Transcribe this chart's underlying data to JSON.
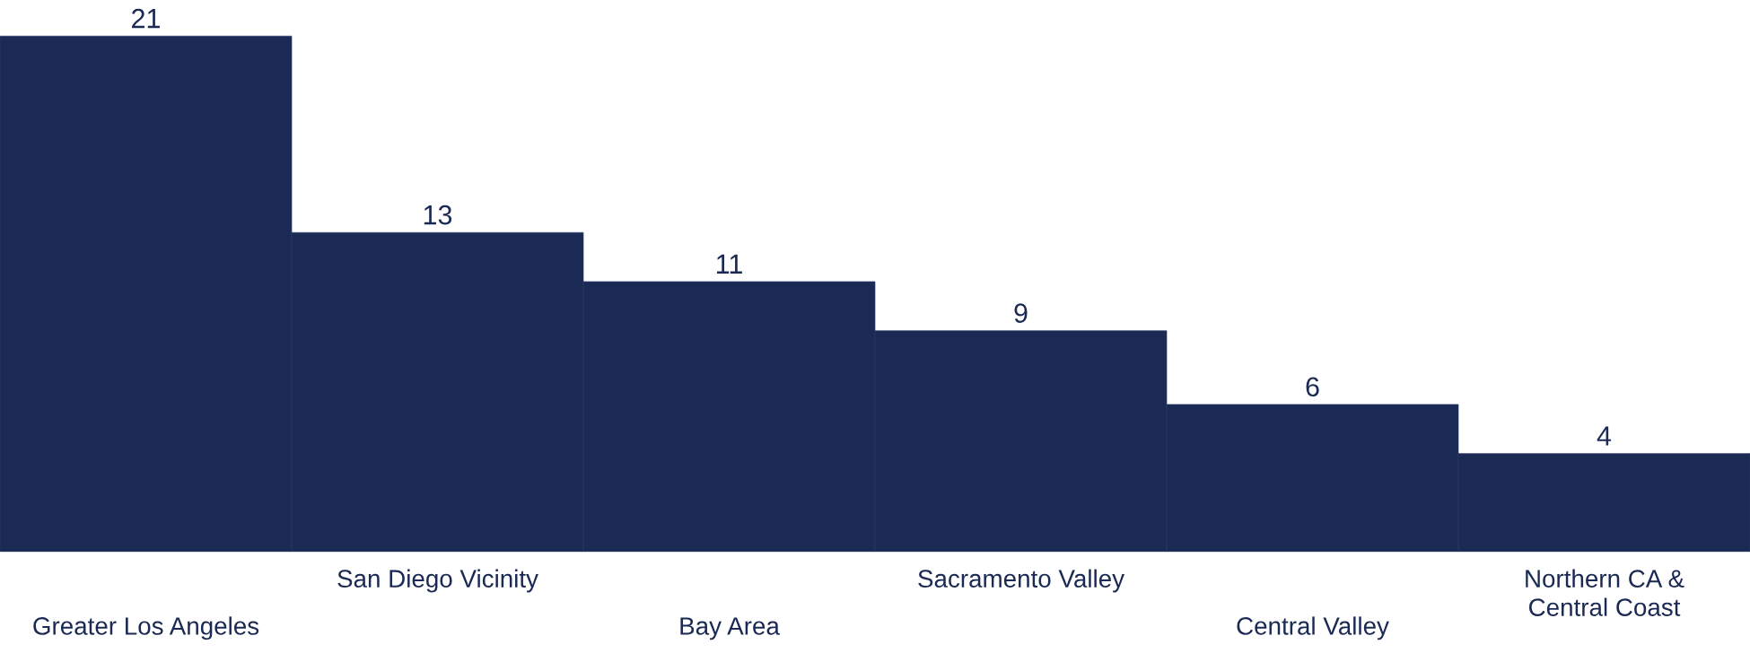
{
  "chart_data": {
    "type": "bar",
    "categories": [
      "Greater Los Angeles",
      "San Diego Vicinity",
      "Bay Area",
      "Sacramento Valley",
      "Central Valley",
      "Northern CA &\nCentral Coast"
    ],
    "values": [
      21,
      13,
      11,
      9,
      6,
      4
    ],
    "color": "#1b2a54",
    "data_labels": true,
    "grid": false,
    "legend": false,
    "tick_labels": "x"
  }
}
